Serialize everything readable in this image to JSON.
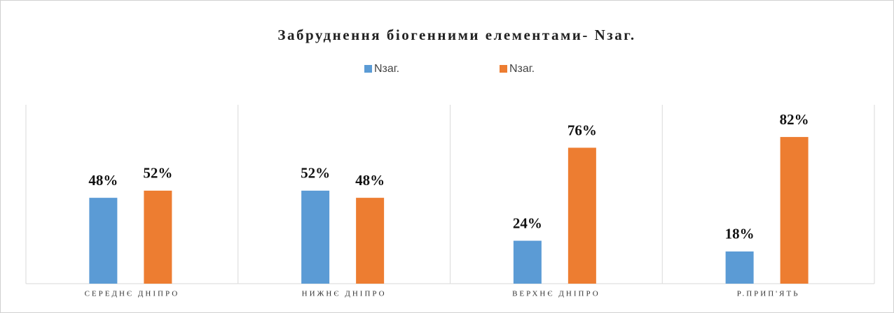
{
  "chart_data": {
    "type": "bar",
    "title": "Забруднення біогенними елементами- Nзаг.",
    "categories": [
      "СЕРЕДНЄ ДНІПРО",
      "НИЖНЄ ДНІПРО",
      "ВЕРХНЄ ДНІПРО",
      "Р.ПРИП'ЯТЬ"
    ],
    "series": [
      {
        "name": "Nзаг.",
        "color": "#5b9bd5",
        "values": [
          48,
          52,
          24,
          18
        ],
        "value_labels": [
          "48%",
          "52%",
          "24%",
          "18%"
        ]
      },
      {
        "name": "Nзаг.",
        "color": "#ed7d31",
        "values": [
          52,
          48,
          76,
          82
        ],
        "value_labels": [
          "52%",
          "48%",
          "76%",
          "82%"
        ]
      }
    ],
    "ylim": [
      0,
      100
    ],
    "legend": "top"
  }
}
